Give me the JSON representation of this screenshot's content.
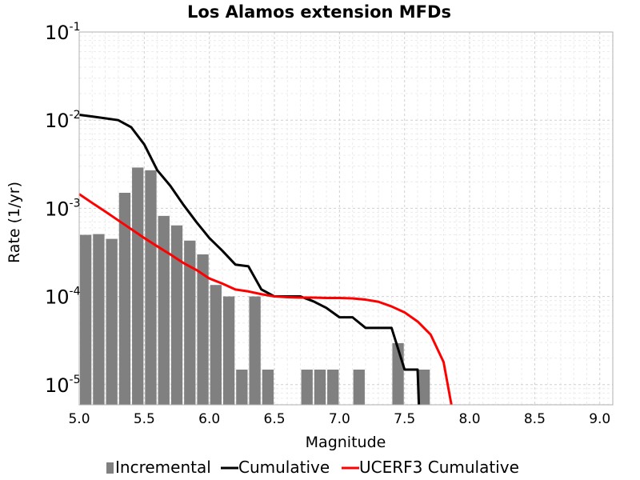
{
  "chart_data": {
    "type": "bar",
    "title": "Los Alamos extension MFDs",
    "xlabel": "Magnitude",
    "ylabel": "Rate (1/yr)",
    "xlim": [
      5.0,
      9.1
    ],
    "ylim": [
      5.9e-06,
      0.1
    ],
    "yscale": "log",
    "grid": true,
    "legend_position": "bottom",
    "x_ticks": [
      "5.0",
      "5.5",
      "6.0",
      "6.5",
      "7.0",
      "7.5",
      "8.0",
      "8.5",
      "9.0"
    ],
    "y_ticks": [
      {
        "base": "10",
        "exp": "-5",
        "value": 1e-05
      },
      {
        "base": "10",
        "exp": "-4",
        "value": 0.0001
      },
      {
        "base": "10",
        "exp": "-3",
        "value": 0.001
      },
      {
        "base": "10",
        "exp": "-2",
        "value": 0.01
      },
      {
        "base": "10",
        "exp": "-1",
        "value": 0.1
      }
    ],
    "series": [
      {
        "name": "Incremental",
        "type": "bar",
        "color": "#808080",
        "x": [
          5.05,
          5.15,
          5.25,
          5.35,
          5.45,
          5.55,
          5.65,
          5.75,
          5.85,
          5.95,
          6.05,
          6.15,
          6.25,
          6.35,
          6.45,
          6.75,
          6.85,
          6.95,
          7.15,
          7.45,
          7.65
        ],
        "values": [
          0.0005,
          0.00051,
          0.00045,
          0.0015,
          0.0029,
          0.0027,
          0.00082,
          0.00064,
          0.00043,
          0.0003,
          0.000135,
          0.0001,
          1.48e-05,
          0.0001,
          1.48e-05,
          1.48e-05,
          1.48e-05,
          1.48e-05,
          1.48e-05,
          2.95e-05,
          1.48e-05
        ]
      },
      {
        "name": "Cumulative",
        "type": "line",
        "color": "#000000",
        "x": [
          5.0,
          5.1,
          5.2,
          5.3,
          5.4,
          5.5,
          5.6,
          5.7,
          5.8,
          5.9,
          6.0,
          6.1,
          6.2,
          6.3,
          6.4,
          6.5,
          6.6,
          6.7,
          6.8,
          6.9,
          7.0,
          7.1,
          7.2,
          7.3,
          7.4,
          7.5,
          7.6,
          7.61
        ],
        "values": [
          0.0115,
          0.011,
          0.0105,
          0.01,
          0.0083,
          0.0053,
          0.0027,
          0.0018,
          0.0011,
          0.0007,
          0.00046,
          0.00033,
          0.00023,
          0.00022,
          0.00012,
          0.0001,
          0.0001,
          0.0001,
          8.8e-05,
          7.4e-05,
          5.8e-05,
          5.8e-05,
          4.4e-05,
          4.4e-05,
          4.4e-05,
          1.48e-05,
          1.48e-05,
          5.9e-06
        ]
      },
      {
        "name": "UCERF3 Cumulative",
        "type": "line",
        "color": "#ff0000",
        "x": [
          5.0,
          5.1,
          5.2,
          5.3,
          5.4,
          5.5,
          5.6,
          5.7,
          5.8,
          5.9,
          6.0,
          6.1,
          6.2,
          6.3,
          6.4,
          6.5,
          6.6,
          6.7,
          6.8,
          6.9,
          7.0,
          7.1,
          7.2,
          7.3,
          7.4,
          7.5,
          7.6,
          7.7,
          7.8,
          7.86
        ],
        "values": [
          0.00145,
          0.00115,
          0.00092,
          0.00073,
          0.00058,
          0.00046,
          0.00037,
          0.0003,
          0.00024,
          0.0002,
          0.00016,
          0.00014,
          0.00012,
          0.000114,
          0.000106,
          0.0001,
          9.8e-05,
          9.7e-05,
          9.7e-05,
          9.6e-05,
          9.6e-05,
          9.5e-05,
          9.2e-05,
          8.7e-05,
          7.7e-05,
          6.6e-05,
          5.2e-05,
          3.7e-05,
          1.8e-05,
          5.9e-06
        ]
      }
    ]
  }
}
